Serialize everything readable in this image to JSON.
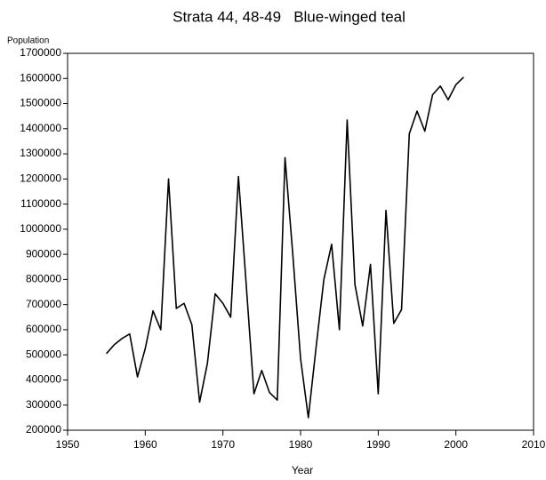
{
  "chart_data": {
    "type": "line",
    "title": "Strata 44, 48-49   Blue-winged teal",
    "x_label": "Year",
    "y_label": "Population",
    "x": [
      1955,
      1956,
      1957,
      1958,
      1959,
      1960,
      1961,
      1962,
      1963,
      1964,
      1965,
      1966,
      1967,
      1968,
      1969,
      1970,
      1971,
      1972,
      1973,
      1974,
      1975,
      1976,
      1977,
      1978,
      1979,
      1980,
      1981,
      1982,
      1983,
      1984,
      1985,
      1986,
      1987,
      1988,
      1989,
      1990,
      1991,
      1992,
      1993,
      1994,
      1995,
      1996,
      1997,
      1998,
      1999,
      2000,
      2001
    ],
    "series": [
      {
        "name": "Blue-winged teal",
        "color": "#000000",
        "values": [
          505000,
          540000,
          565000,
          583000,
          412000,
          525000,
          675000,
          600000,
          1200000,
          685000,
          705000,
          620000,
          312000,
          465000,
          743000,
          705000,
          650000,
          1210000,
          780000,
          345000,
          438000,
          350000,
          320000,
          1285000,
          900000,
          485000,
          250000,
          530000,
          800000,
          940000,
          600000,
          1435000,
          780000,
          615000,
          860000,
          345000,
          1075000,
          625000,
          680000,
          1380000,
          1470000,
          1390000,
          1535000,
          1570000,
          1515000,
          1575000,
          1605000
        ]
      }
    ],
    "xlim": [
      1950,
      2010
    ],
    "xticks": [
      1950,
      1960,
      1970,
      1980,
      1990,
      2000,
      2010
    ],
    "ylim": [
      200000,
      1700000
    ],
    "yticks": [
      200000,
      300000,
      400000,
      500000,
      600000,
      700000,
      800000,
      900000,
      1000000,
      1100000,
      1200000,
      1300000,
      1400000,
      1500000,
      1600000,
      1700000
    ],
    "grid": false
  }
}
